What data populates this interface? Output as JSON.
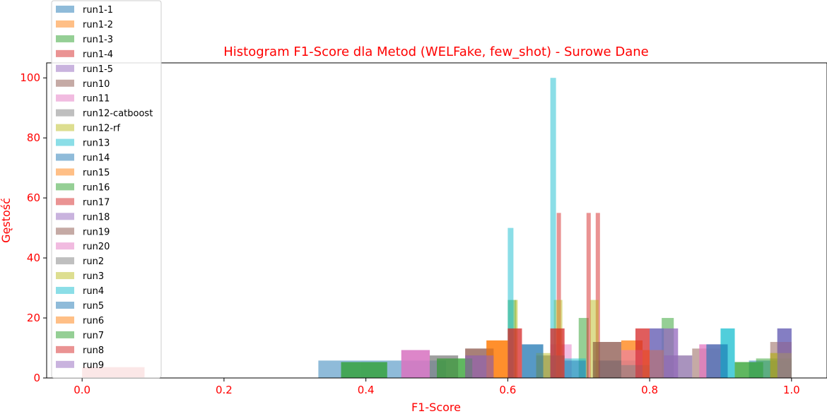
{
  "chart_data": {
    "type": "bar",
    "title": "Histogram F1-Score dla Metod (WELFake, few_shot) - Surowe Dane",
    "xlabel": "F1-Score",
    "ylabel": "Gęstość",
    "xlim": [
      -0.05,
      1.05
    ],
    "ylim": [
      0,
      105
    ],
    "xticks": [
      "0.0",
      "0.2",
      "0.4",
      "0.6",
      "0.8",
      "1.0"
    ],
    "xtick_values": [
      0.0,
      0.2,
      0.4,
      0.6,
      0.8,
      1.0
    ],
    "yticks": [
      "0",
      "20",
      "40",
      "60",
      "80",
      "100"
    ],
    "ytick_values": [
      0,
      20,
      40,
      60,
      80,
      100
    ],
    "grid": false,
    "legend_position": "top-left",
    "bar_alpha": 0.5,
    "series": [
      {
        "name": "run1-1",
        "color": "#1f77b4",
        "bins": [
          [
            0.333,
            0.393,
            5.8
          ],
          [
            0.393,
            0.453,
            5.8
          ],
          [
            0.453,
            0.513,
            5.8
          ],
          [
            0.72,
            0.78,
            5.8
          ],
          [
            0.94,
            1.0,
            5.8
          ]
        ]
      },
      {
        "name": "run1-2",
        "color": "#ff7f0e",
        "bins": [
          [
            0.57,
            0.6,
            12.5
          ],
          [
            0.76,
            0.79,
            12.5
          ],
          [
            0.79,
            0.82,
            9.3
          ]
        ]
      },
      {
        "name": "run1-3",
        "color": "#2ca02c",
        "bins": [
          [
            0.6,
            0.612,
            26
          ],
          [
            0.7,
            0.714,
            20
          ],
          [
            0.817,
            0.834,
            20
          ],
          [
            0.92,
            0.95,
            5.3
          ]
        ]
      },
      {
        "name": "run1-4",
        "color": "#d62728",
        "bins": [
          [
            0.0,
            0.088,
            3.6
          ],
          [
            0.669,
            0.675,
            55
          ],
          [
            0.711,
            0.717,
            55
          ],
          [
            0.724,
            0.73,
            55
          ]
        ]
      },
      {
        "name": "run1-5",
        "color": "#9467bd",
        "bins": [
          [
            0.45,
            0.49,
            9.3
          ],
          [
            0.8,
            0.84,
            16.5
          ],
          [
            0.98,
            1.0,
            16.5
          ]
        ]
      },
      {
        "name": "run10",
        "color": "#8c564b",
        "bins": [
          [
            0.54,
            0.58,
            9.8
          ],
          [
            0.72,
            0.76,
            12
          ],
          [
            0.86,
            0.9,
            9.8
          ]
        ]
      },
      {
        "name": "run11",
        "color": "#e377c2",
        "bins": [
          [
            0.45,
            0.49,
            9.3
          ],
          [
            0.66,
            0.69,
            11.2
          ],
          [
            0.87,
            0.9,
            11.2
          ]
        ]
      },
      {
        "name": "run12-catboost",
        "color": "#7f7f7f",
        "bins": [
          [
            0.49,
            0.53,
            7.5
          ],
          [
            0.64,
            0.68,
            7.5
          ],
          [
            0.82,
            0.86,
            7.5
          ]
        ]
      },
      {
        "name": "run12-rf",
        "color": "#bcbd22",
        "bins": [
          [
            0.61,
            0.614,
            26
          ],
          [
            0.665,
            0.677,
            26
          ],
          [
            0.716,
            0.728,
            26
          ],
          [
            0.97,
            1.0,
            8.3
          ]
        ]
      },
      {
        "name": "run13",
        "color": "#17becf",
        "bins": [
          [
            0.6,
            0.608,
            50
          ],
          [
            0.66,
            0.668,
            100
          ],
          [
            0.9,
            0.92,
            16.5
          ]
        ]
      },
      {
        "name": "run14",
        "color": "#1f77b4",
        "bins": [
          [
            0.62,
            0.65,
            11.2
          ],
          [
            0.8,
            0.82,
            16.5
          ],
          [
            0.88,
            0.91,
            11.2
          ],
          [
            0.98,
            1.0,
            16.5
          ]
        ]
      },
      {
        "name": "run15",
        "color": "#ff7f0e",
        "bins": [
          [
            0.57,
            0.6,
            12.5
          ],
          [
            0.76,
            0.79,
            12.5
          ]
        ]
      },
      {
        "name": "run16",
        "color": "#2ca02c",
        "bins": [
          [
            0.365,
            0.43,
            5.3
          ],
          [
            0.5,
            0.55,
            6.5
          ],
          [
            0.95,
            1.0,
            6.5
          ]
        ]
      },
      {
        "name": "run17",
        "color": "#d62728",
        "bins": [
          [
            0.6,
            0.62,
            16.5
          ],
          [
            0.66,
            0.68,
            16.5
          ],
          [
            0.78,
            0.8,
            16.5
          ]
        ]
      },
      {
        "name": "run18",
        "color": "#9467bd",
        "bins": [
          [
            0.54,
            0.58,
            7.5
          ],
          [
            0.82,
            0.86,
            7.5
          ]
        ]
      },
      {
        "name": "run19",
        "color": "#8c564b",
        "bins": [
          [
            0.54,
            0.58,
            9.8
          ],
          [
            0.72,
            0.76,
            12
          ],
          [
            0.97,
            1.0,
            12
          ]
        ]
      },
      {
        "name": "run20",
        "color": "#e377c2",
        "bins": [
          [
            0.45,
            0.49,
            9.3
          ],
          [
            0.76,
            0.8,
            9.3
          ],
          [
            0.87,
            0.9,
            11.2
          ]
        ]
      },
      {
        "name": "run2",
        "color": "#7f7f7f",
        "bins": [
          [
            0.49,
            0.53,
            7.5
          ],
          [
            0.64,
            0.68,
            7.5
          ],
          [
            0.76,
            0.8,
            4.3
          ]
        ]
      },
      {
        "name": "run3",
        "color": "#bcbd22",
        "bins": [
          [
            0.64,
            0.66,
            8.3
          ],
          [
            0.97,
            1.0,
            8.3
          ]
        ]
      },
      {
        "name": "run4",
        "color": "#17becf",
        "bins": [
          [
            0.68,
            0.71,
            6.5
          ],
          [
            0.9,
            0.92,
            16.5
          ]
        ]
      },
      {
        "name": "run5",
        "color": "#1f77b4",
        "bins": [
          [
            0.62,
            0.65,
            11.2
          ],
          [
            0.68,
            0.71,
            5.8
          ],
          [
            0.88,
            0.91,
            11.2
          ]
        ]
      },
      {
        "name": "run6",
        "color": "#ff7f0e",
        "bins": [
          [
            0.57,
            0.6,
            12.5
          ],
          [
            0.79,
            0.82,
            9.3
          ]
        ]
      },
      {
        "name": "run7",
        "color": "#2ca02c",
        "bins": [
          [
            0.365,
            0.43,
            5.3
          ],
          [
            0.5,
            0.55,
            6.5
          ],
          [
            0.92,
            0.96,
            5.3
          ]
        ]
      },
      {
        "name": "run8",
        "color": "#d62728",
        "bins": [
          [
            0.0,
            0.088,
            3.6
          ],
          [
            0.6,
            0.62,
            16.5
          ],
          [
            0.66,
            0.68,
            16.5
          ],
          [
            0.78,
            0.8,
            16.5
          ]
        ]
      },
      {
        "name": "run9",
        "color": "#9467bd",
        "bins": [
          [
            0.8,
            0.84,
            16.5
          ],
          [
            0.98,
            1.0,
            16.5
          ],
          [
            0.54,
            0.58,
            7.5
          ]
        ]
      }
    ]
  }
}
